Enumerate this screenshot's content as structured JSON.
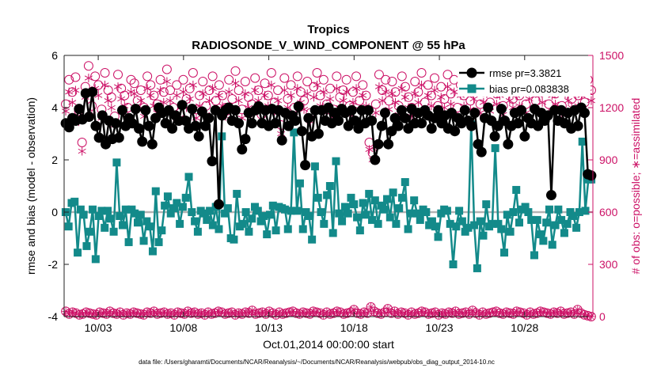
{
  "chart_data": {
    "type": "line",
    "title": "Tropics",
    "subtitle": "RADIOSONDE_V_WIND_COMPONENT @ 55 hPa",
    "xlabel": "Oct.01,2014 00:00:00 start",
    "ylabel_left": "rmse and bias (model - observation)",
    "ylabel_right": "# of obs: o=possible; ∗=assimilated",
    "footnote": "data file: /Users/gharamti/Documents/NCAR/Reanalysis/~/Documents/NCAR/Reanalysis/webpub/obs_diag_output_2014-10.nc",
    "x_range": [
      1,
      32
    ],
    "x_ticks": [
      3,
      8,
      13,
      18,
      23,
      28
    ],
    "x_tick_labels": [
      "10/03",
      "10/08",
      "10/13",
      "10/18",
      "10/23",
      "10/28"
    ],
    "ylim_left": [
      -4,
      6
    ],
    "y_ticks_left": [
      -4,
      -2,
      0,
      2,
      4,
      6
    ],
    "ylim_right": [
      0,
      1500
    ],
    "y_ticks_right": [
      0,
      300,
      600,
      900,
      1200,
      1500
    ],
    "grid": false,
    "legend_position": "top-right",
    "colors": {
      "rmse": "#000000",
      "bias": "#138a8a",
      "obs": "#cc1166",
      "zero_line": "#b3b3b3"
    },
    "series": [
      {
        "name": "rmse",
        "legend_label": "rmse pr=3.3821",
        "axis": "left",
        "values": [
          3.4,
          3.25,
          3.6,
          3.5,
          3.95,
          3.55,
          4.55,
          3.65,
          4.6,
          3.3,
          2.85,
          3.7,
          2.6,
          3.5,
          2.8,
          3.4,
          2.85,
          3.9,
          3.3,
          3.6,
          3.4,
          3.95,
          3.2,
          2.7,
          3.9,
          3.3,
          2.6,
          3.6,
          4.0,
          3.8,
          3.4,
          3.9,
          3.2,
          3.7,
          3.5,
          4.1,
          3.5,
          3.2,
          3.95,
          3.3,
          2.9,
          3.85,
          3.3,
          3.6,
          1.95,
          3.9,
          0.3,
          3.7,
          3.9,
          4.0,
          3.5,
          3.9,
          3.4,
          2.4,
          2.8,
          3.8,
          3.4,
          3.9,
          4.05,
          3.4,
          3.9,
          3.3,
          3.95,
          3.4,
          3.9,
          2.75,
          3.8,
          3.3,
          3.7,
          3.5,
          4.05,
          3.1,
          1.8,
          3.6,
          2.9,
          3.9,
          3.0,
          3.9,
          3.5,
          4.0,
          3.4,
          3.8,
          3.5,
          3.95,
          3.8,
          3.3,
          3.9,
          3.5,
          3.2,
          3.9,
          3.4,
          3.9,
          3.5,
          2.0,
          2.6,
          3.3,
          3.8,
          2.6,
          3.1,
          3.6,
          3.3,
          3.9,
          3.6,
          3.2,
          3.95,
          3.4,
          3.8,
          3.4,
          3.9,
          3.7,
          3.2,
          3.6,
          3.9,
          3.4,
          3.7,
          3.2,
          3.8,
          3.1,
          3.6,
          3.4,
          3.9,
          3.5,
          3.3,
          3.8,
          2.6,
          2.3,
          3.6,
          4.0,
          3.5,
          2.9,
          3.3,
          3.95,
          3.5,
          2.6,
          3.3,
          3.8,
          3.4,
          3.9,
          2.9,
          3.6,
          3.4,
          3.95,
          3.3,
          3.8,
          3.5,
          3.7,
          0.65,
          3.9,
          3.5,
          3.9,
          3.4,
          3.8,
          3.2,
          3.9,
          3.3,
          4.0,
          3.8,
          1.45,
          1.4
        ]
      },
      {
        "name": "bias",
        "legend_label": "bias pr=0.083838",
        "axis": "left",
        "values": [
          0.0,
          -0.55,
          0.35,
          0.4,
          -1.55,
          0.1,
          -0.1,
          -1.3,
          -0.75,
          0.1,
          -1.8,
          -0.15,
          0.05,
          -0.6,
          0.05,
          -0.25,
          -0.75,
          1.9,
          -0.15,
          -0.5,
          0.1,
          -1.15,
          0.1,
          -0.05,
          -0.4,
          -0.1,
          -1.1,
          -0.35,
          -0.55,
          -1.5,
          0.8,
          -1.15,
          -0.7,
          0.25,
          0.6,
          -0.05,
          0.15,
          0.35,
          -0.45,
          0.2,
          0.55,
          1.35,
          0.0,
          -0.35,
          -0.75,
          0.05,
          -0.05,
          -0.3,
          0.05,
          -0.5,
          0.2,
          -0.65,
          2.9,
          -0.05,
          0.15,
          -1.0,
          -1.05,
          0.7,
          -0.55,
          -0.45,
          0.0,
          -0.75,
          -0.25,
          0.2,
          0.05,
          -0.35,
          -0.15,
          -0.85,
          -0.1,
          0.25,
          -0.7,
          0.2,
          0.15,
          0.1,
          -0.65,
          0.05,
          3.05,
          0.05,
          1.1,
          -0.65,
          0.0,
          -0.15,
          -1.05,
          1.75,
          0.55,
          0.0,
          -0.45,
          0.65,
          1.0,
          -0.8,
          1.95,
          -0.05,
          -0.35,
          0.2,
          -0.05,
          0.55,
          0.3,
          -0.2,
          -0.7,
          0.35,
          -0.1,
          0.7,
          -0.3,
          0.45,
          -0.45,
          0.25,
          0.1,
          0.5,
          -0.2,
          0.75,
          -0.45,
          0.15,
          0.55,
          1.15,
          -0.65,
          -0.05,
          0.45,
          -0.05,
          -0.3,
          0.1,
          0.0,
          -0.5,
          -0.35,
          -0.55,
          -0.95,
          -0.05,
          0.1,
          0.05,
          -0.45,
          -2.0,
          -0.55,
          0.05,
          -0.35,
          -0.75,
          -0.6,
          3.35,
          -0.5,
          -2.15,
          -0.35,
          -0.9,
          0.3,
          -0.55,
          -0.45,
          2.45,
          -0.45,
          -0.65,
          -1.55,
          -0.1,
          -0.75,
          0.0,
          0.85,
          -0.4,
          0.1,
          0.2,
          0.0,
          -0.3,
          -1.65,
          -0.3,
          -0.85,
          -1.1,
          -0.4,
          0.1,
          -1.25,
          -0.5,
          0.1,
          -0.3,
          -0.8,
          -0.45,
          0.0,
          -0.15,
          -0.6,
          0.0,
          2.7,
          0.05,
          1.25,
          1.25
        ]
      },
      {
        "name": "obs_possible",
        "axis": "right",
        "marker": "circle",
        "values": [
          1220,
          1360,
          1290,
          1375,
          1180,
          1000,
          1320,
          1440,
          1210,
          1380,
          1330,
          1190,
          1400,
          1300,
          1260,
          1150,
          1390,
          1310,
          1270,
          1200,
          1360,
          1340,
          1240,
          1300,
          1200,
          1380,
          1330,
          1270,
          1220,
          1360,
          1290,
          1420,
          1300,
          1200,
          1330,
          1170,
          1360,
          1250,
          1310,
          1400,
          1190,
          1270,
          1350,
          1210,
          1300,
          1380,
          1240,
          1330,
          1270,
          1200,
          1360,
          1250,
          1410,
          1300,
          1190,
          1350,
          1260,
          1220,
          1370,
          1300,
          1160,
          1340,
          1270,
          1400,
          1230,
          1300,
          1100,
          1370,
          1250,
          1330,
          1200,
          1380,
          1290,
          1240,
          1350,
          1170,
          1320,
          1400,
          1270,
          1360,
          1220,
          1310,
          1190,
          1380,
          1260,
          1300,
          1360,
          1210,
          1290,
          1380,
          1240,
          1330,
          1270,
          1000,
          940,
          1220,
          1390,
          1300,
          1360,
          1240,
          1350,
          1290,
          1210,
          1380,
          1320,
          1260,
          1200,
          1350,
          1290,
          1400,
          1230,
          1330,
          1270,
          1370,
          1210,
          1320,
          1250,
          1390,
          1280,
          1360,
          1200,
          1330,
          1270,
          1380,
          1240,
          1310,
          1370,
          1220,
          1290,
          1350,
          1230,
          1400,
          1280,
          1340,
          1210,
          1370,
          1300,
          1250,
          1330,
          1270,
          1390,
          1220,
          1310,
          1360,
          1240,
          1330,
          1290,
          1370,
          1220,
          1330,
          1280,
          1380,
          1210,
          1350,
          1300,
          1250,
          1390,
          1270,
          1330,
          1230,
          1360,
          1300
        ]
      },
      {
        "name": "obs_assimilated",
        "axis": "right",
        "marker": "asterisk",
        "values": [
          1180,
          1290,
          1230,
          1300,
          1120,
          950,
          1260,
          1370,
          1160,
          1310,
          1270,
          1140,
          1330,
          1240,
          1200,
          1100,
          1320,
          1250,
          1210,
          1150,
          1290,
          1280,
          1190,
          1240,
          1150,
          1310,
          1270,
          1210,
          1170,
          1300,
          1230,
          1350,
          1240,
          1150,
          1270,
          1120,
          1290,
          1200,
          1250,
          1330,
          1140,
          1210,
          1280,
          1160,
          1240,
          1310,
          1190,
          1270,
          1210,
          1150,
          1290,
          1200,
          1340,
          1240,
          1140,
          1280,
          1200,
          1170,
          1300,
          1240,
          1110,
          1270,
          1210,
          1330,
          1180,
          1240,
          1050,
          1300,
          1200,
          1270,
          1150,
          1310,
          1230,
          1190,
          1280,
          1120,
          1260,
          1330,
          1210,
          1290,
          1170,
          1250,
          1140,
          1310,
          1200,
          1240,
          1290,
          1160,
          1230,
          1310,
          1190,
          1270,
          1210,
          960,
          900,
          1170,
          1320,
          1240,
          1290,
          1190,
          1280,
          1230,
          1160,
          1310,
          1260,
          1200,
          1150,
          1280,
          1230,
          1330,
          1180,
          1270,
          1210,
          1300,
          1160,
          1260,
          1200,
          1320,
          1220,
          1290,
          1150,
          1270,
          1210,
          1310,
          1190,
          1250,
          1300,
          1170,
          1230,
          1280,
          1180,
          1330,
          1220,
          1270,
          1160,
          1300,
          1240,
          1200,
          1270,
          1210,
          1320,
          1170,
          1250,
          1290,
          1190,
          1270,
          1230,
          1300,
          1170,
          1270,
          1220,
          1310,
          1160,
          1280,
          1240,
          1200,
          1320,
          1210,
          1270,
          1180,
          1290,
          1240
        ]
      },
      {
        "name": "obs_possible_bottom",
        "axis": "right",
        "marker": "circle-plus",
        "values": [
          30,
          15,
          25,
          20,
          10,
          15,
          25,
          20,
          15,
          10,
          25,
          20,
          15,
          30,
          20,
          15,
          25,
          10,
          20,
          15,
          25,
          20,
          15,
          10,
          25,
          20,
          30,
          15,
          20,
          25,
          15,
          20,
          10,
          25,
          20,
          15,
          30,
          20,
          25,
          15,
          20,
          10,
          25,
          15,
          20,
          30,
          25,
          15,
          20,
          25,
          10,
          20,
          15,
          25,
          20,
          35,
          15,
          20,
          25,
          15,
          30,
          20,
          10,
          25,
          15,
          20,
          25,
          30,
          20,
          15,
          25,
          20,
          15,
          30,
          25,
          20,
          10,
          25,
          15,
          20,
          30,
          25,
          15,
          20,
          25,
          40,
          20,
          15,
          25,
          20,
          55,
          30,
          20,
          15,
          25,
          45,
          20,
          30,
          15,
          25,
          20,
          10,
          25,
          15,
          20,
          30,
          25,
          15,
          20,
          25,
          10,
          20,
          15,
          25,
          20,
          30,
          15,
          20,
          25,
          15,
          35,
          20,
          10,
          25,
          15,
          20,
          25,
          30,
          20,
          15,
          25,
          20,
          15,
          30,
          25,
          20,
          10,
          25,
          15,
          20,
          30,
          25,
          20,
          15,
          25,
          20,
          30,
          15,
          20,
          25,
          15,
          40,
          20,
          10,
          5,
          0
        ]
      }
    ]
  }
}
